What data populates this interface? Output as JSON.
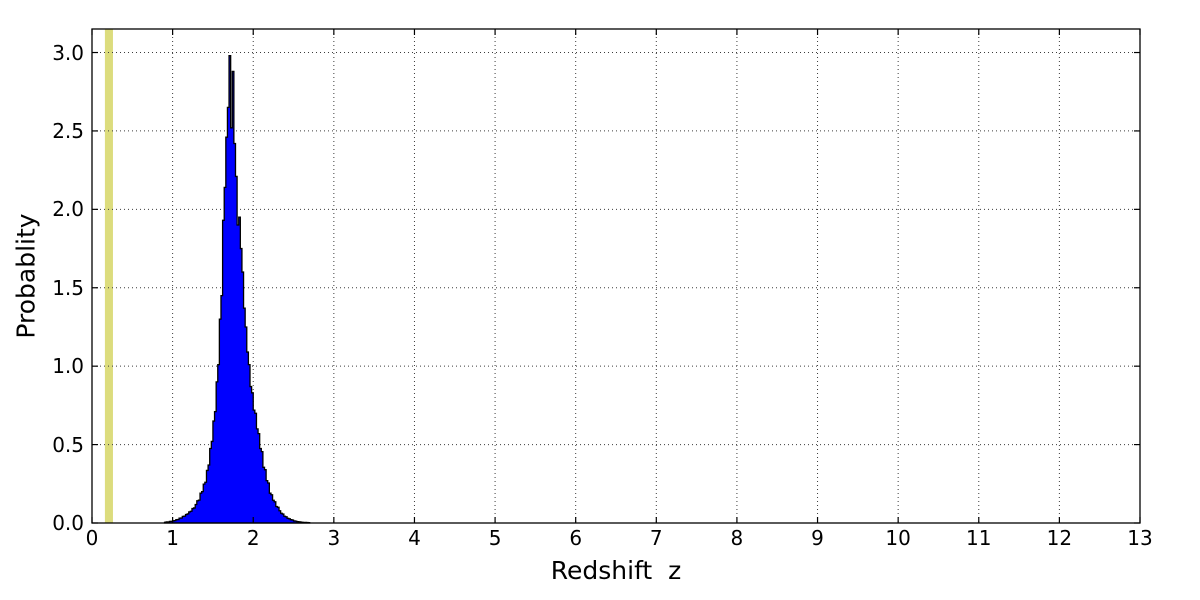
{
  "chart_data": {
    "type": "bar",
    "subtype": "histogram",
    "title": "",
    "xlabel": "Redshift  z",
    "ylabel": "Probablity",
    "xlim": [
      0,
      13
    ],
    "ylim": [
      0,
      3.15
    ],
    "x_tick_labels": [
      "0",
      "1",
      "2",
      "3",
      "4",
      "5",
      "6",
      "7",
      "8",
      "9",
      "10",
      "11",
      "12",
      "13"
    ],
    "x_tick_values": [
      0,
      1,
      2,
      3,
      4,
      5,
      6,
      7,
      8,
      9,
      10,
      11,
      12,
      13
    ],
    "y_tick_labels": [
      "0.0",
      "0.5",
      "1.0",
      "1.5",
      "2.0",
      "2.5",
      "3.0"
    ],
    "y_tick_values": [
      0.0,
      0.5,
      1.0,
      1.5,
      2.0,
      2.5,
      3.0
    ],
    "grid": {
      "on": true,
      "style": "dotted",
      "color": "#3c3c3c"
    },
    "legend": {
      "visible": false
    },
    "vspan": {
      "from": 0.16,
      "to": 0.26,
      "color": "#dcdc7d"
    },
    "histogram": {
      "bin_start": 0.9,
      "bin_width": 0.02,
      "fill_color": "#0000ff",
      "edge_color": "#000000",
      "peak_value": 2.98,
      "peak_x": 1.71,
      "heights": [
        0.005,
        0.007,
        0.006,
        0.01,
        0.011,
        0.014,
        0.015,
        0.021,
        0.022,
        0.031,
        0.032,
        0.042,
        0.044,
        0.054,
        0.058,
        0.071,
        0.075,
        0.092,
        0.096,
        0.118,
        0.142,
        0.146,
        0.19,
        0.2,
        0.248,
        0.26,
        0.335,
        0.37,
        0.475,
        0.52,
        0.65,
        0.71,
        0.9,
        1.01,
        1.3,
        1.45,
        1.93,
        2.14,
        2.46,
        2.65,
        2.98,
        2.52,
        2.88,
        2.42,
        2.21,
        1.9,
        1.95,
        1.75,
        1.6,
        1.37,
        1.25,
        1.09,
        1.01,
        0.87,
        0.83,
        0.72,
        0.7,
        0.6,
        0.57,
        0.475,
        0.455,
        0.355,
        0.34,
        0.27,
        0.255,
        0.19,
        0.18,
        0.145,
        0.135,
        0.105,
        0.1,
        0.078,
        0.062,
        0.057,
        0.043,
        0.04,
        0.03,
        0.027,
        0.021,
        0.019,
        0.013,
        0.012,
        0.009,
        0.008,
        0.006,
        0.005,
        0.004,
        0.004,
        0.003,
        0.002
      ]
    }
  }
}
